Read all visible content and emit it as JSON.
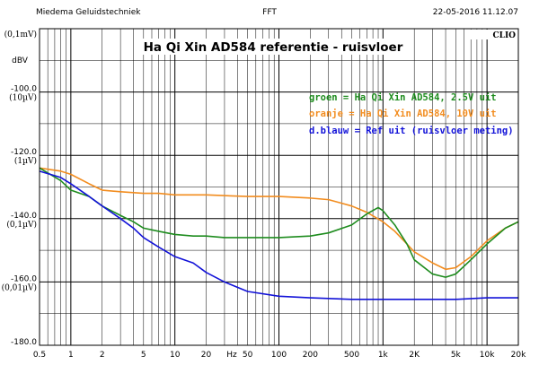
{
  "header": {
    "left": "Miedema Geluidstechniek",
    "center": "FFT",
    "right": "22-05-2016 11.12.07"
  },
  "brand": "CLIO",
  "chart_data": {
    "type": "line",
    "title": "Ha Qi Xin AD584 referentie - ruisvloer",
    "ylabel": "dBV",
    "xlabel": "Hz",
    "x_scale": "log",
    "xlim": [
      0.5,
      20000
    ],
    "ylim": [
      -180,
      -80
    ],
    "grid": true,
    "y_ticks": [
      {
        "value": -80,
        "label": "",
        "sub": "(0,1mV)"
      },
      {
        "value": -100,
        "label": "-100.0",
        "sub": "(10µV)"
      },
      {
        "value": -120,
        "label": "-120.0",
        "sub": "(1µV)"
      },
      {
        "value": -140,
        "label": "-140.0",
        "sub": "(0,1µV)"
      },
      {
        "value": -160,
        "label": "-160.0",
        "sub": "(0,01µV)"
      },
      {
        "value": -180,
        "label": "-180.0",
        "sub": ""
      }
    ],
    "x_ticks": [
      {
        "value": 0.5,
        "label": "0.5"
      },
      {
        "value": 1,
        "label": "1"
      },
      {
        "value": 2,
        "label": "2"
      },
      {
        "value": 5,
        "label": "5"
      },
      {
        "value": 10,
        "label": "10"
      },
      {
        "value": 20,
        "label": "20"
      },
      {
        "value": 50,
        "label": "50"
      },
      {
        "value": 100,
        "label": "100"
      },
      {
        "value": 200,
        "label": "200"
      },
      {
        "value": 500,
        "label": "500"
      },
      {
        "value": 1000,
        "label": "1k"
      },
      {
        "value": 2000,
        "label": "2K"
      },
      {
        "value": 5000,
        "label": "5k"
      },
      {
        "value": 10000,
        "label": "10k"
      },
      {
        "value": 20000,
        "label": "20k"
      }
    ],
    "series": [
      {
        "name": "groen = Ha Qi Xin AD584, 2.5V uit",
        "color": "#1e8c1e",
        "x": [
          0.5,
          0.8,
          1,
          1.5,
          2,
          3,
          4,
          5,
          7,
          10,
          15,
          20,
          30,
          50,
          100,
          200,
          300,
          500,
          700,
          900,
          1000,
          1300,
          1700,
          2000,
          3000,
          4000,
          5000,
          7000,
          10000,
          15000,
          20000
        ],
        "y": [
          -124,
          -128,
          -131,
          -133,
          -136,
          -139,
          -141,
          -143,
          -144,
          -145,
          -145.5,
          -145.5,
          -146,
          -146,
          -146,
          -145.5,
          -144.5,
          -142,
          -138.5,
          -136.5,
          -137.5,
          -142,
          -148,
          -153,
          -157.5,
          -158.5,
          -157.5,
          -153,
          -148,
          -143,
          -141
        ]
      },
      {
        "name": "oranje = Ha Qi Xin AD584, 10V uit",
        "color": "#f28c1e",
        "x": [
          0.5,
          0.8,
          1,
          1.5,
          2,
          3,
          5,
          7,
          10,
          20,
          50,
          100,
          200,
          300,
          500,
          700,
          1000,
          1300,
          1700,
          2000,
          3000,
          4000,
          5000,
          7000,
          10000,
          15000,
          20000
        ],
        "y": [
          -124,
          -125,
          -126,
          -129,
          -131,
          -131.5,
          -132,
          -132,
          -132.5,
          -132.5,
          -133,
          -133,
          -133.5,
          -134,
          -136,
          -138,
          -141,
          -144,
          -148,
          -150.5,
          -154,
          -156,
          -155.5,
          -152,
          -147,
          -143,
          -141
        ]
      },
      {
        "name": "d.blauw = Ref uit (ruisvloer meting)",
        "color": "#1212d8",
        "x": [
          0.5,
          0.8,
          1,
          1.5,
          2,
          3,
          4,
          5,
          7,
          10,
          15,
          20,
          30,
          50,
          100,
          200,
          500,
          1000,
          2000,
          5000,
          10000,
          20000
        ],
        "y": [
          -125,
          -127,
          -129,
          -133,
          -136,
          -140,
          -143,
          -146,
          -149,
          -152,
          -154,
          -157,
          -160,
          -163,
          -164.5,
          -165,
          -165.5,
          -165.5,
          -165.5,
          -165.5,
          -165,
          -165
        ]
      }
    ]
  }
}
